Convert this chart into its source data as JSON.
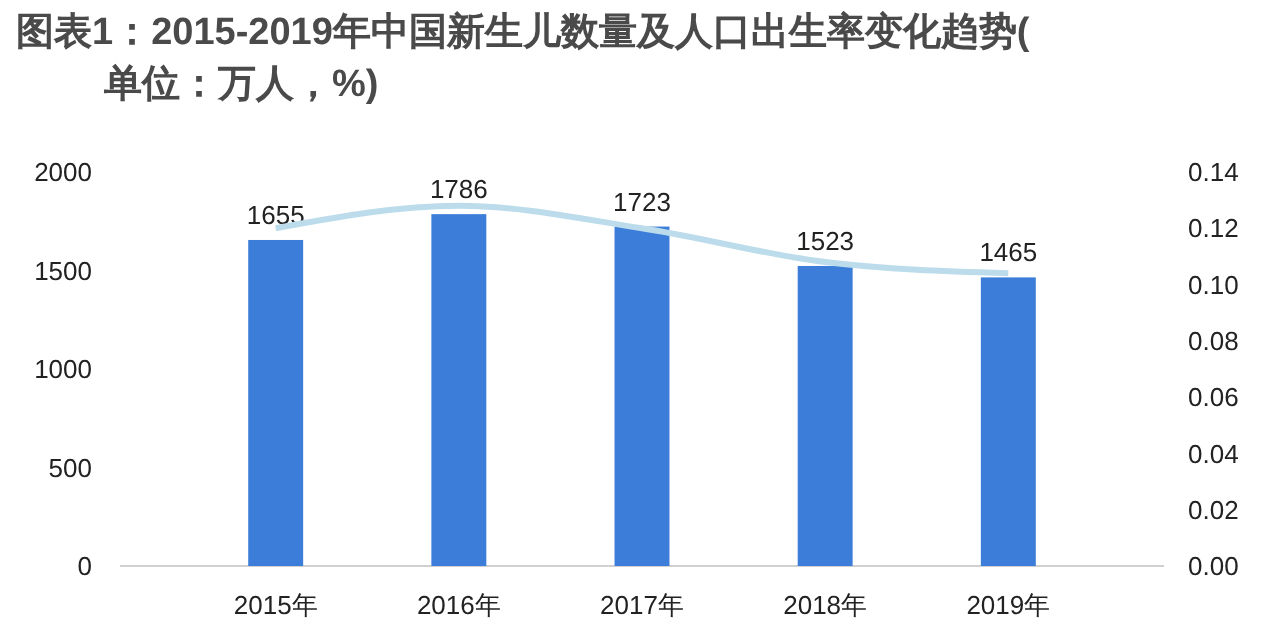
{
  "chart_data": {
    "type": "bar",
    "title": "图表1：2015-2019年中国新生儿数量及人口出生率变化趋势(单位：万人，%)",
    "categories": [
      "2015年",
      "2016年",
      "2017年",
      "2018年",
      "2019年"
    ],
    "series": [
      {
        "color": "#3b7dd8",
        "values": [
          1655,
          1786,
          1723,
          1523,
          1465
        ],
        "value_labels": [
          "1655",
          "1786",
          "1723",
          "1523",
          "1465"
        ]
      },
      {
        "type": "line",
        "axis": "y2",
        "color": "#bcdcec",
        "values": [
          0.12,
          0.128,
          0.12,
          0.108,
          0.104
        ]
      }
    ],
    "ylim": [
      0,
      2000
    ],
    "yticks": [
      0,
      500,
      1000,
      1500,
      2000
    ],
    "y2lim": [
      0,
      0.14
    ],
    "y2ticks": [
      {
        "value": 0,
        "label": "0.00"
      },
      {
        "value": 0.02,
        "label": "0.02"
      },
      {
        "value": 0.04,
        "label": "0.04"
      },
      {
        "value": 0.06,
        "label": "0.06"
      },
      {
        "value": 0.08,
        "label": "0.08"
      },
      {
        "value": 0.1,
        "label": "0.10"
      },
      {
        "value": 0.12,
        "label": "0.12"
      },
      {
        "value": 0.14,
        "label": "0.14"
      }
    ],
    "grid": false,
    "marker": "none"
  }
}
